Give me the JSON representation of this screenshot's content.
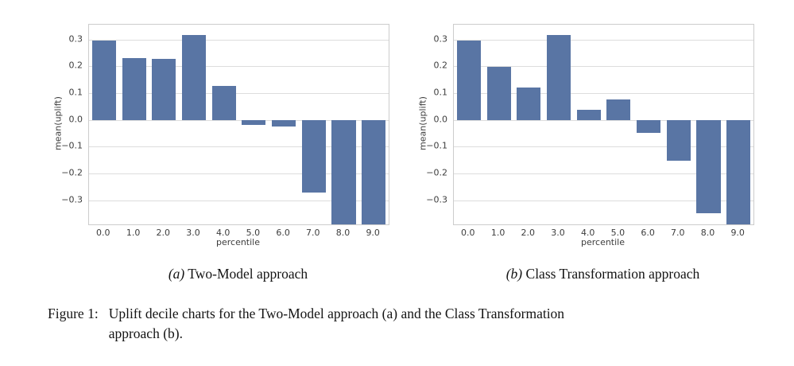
{
  "colors": {
    "background": "#ffffff",
    "bar": "#5975a4",
    "gridline": "#dddddd",
    "plot_border": "#cccccc",
    "tick_text": "#3d3d3d",
    "caption_text": "#141414"
  },
  "chart_data": [
    {
      "type": "bar",
      "subfigure": "a",
      "title": "",
      "xlabel": "percentile",
      "ylabel": "mean(uplift)",
      "categories": [
        "0.0",
        "1.0",
        "2.0",
        "3.0",
        "4.0",
        "5.0",
        "6.0",
        "7.0",
        "8.0",
        "9.0"
      ],
      "values": [
        0.295,
        0.23,
        0.228,
        0.317,
        0.127,
        -0.02,
        -0.025,
        -0.27,
        -0.39,
        -0.39
      ],
      "clipped_at_bottom": [
        "8.0",
        "9.0"
      ],
      "ylim": [
        -0.39,
        0.355
      ],
      "yticks": [
        0.3,
        0.2,
        0.1,
        0.0,
        -0.1,
        -0.2,
        -0.3
      ],
      "ytick_labels": [
        "0.3",
        "0.2",
        "0.1",
        "0.0",
        "−0.1",
        "−0.2",
        "−0.3"
      ],
      "grid": true,
      "legend": false,
      "bar_color": "#5975a4"
    },
    {
      "type": "bar",
      "subfigure": "b",
      "title": "",
      "xlabel": "percentile",
      "ylabel": "mean(uplift)",
      "categories": [
        "0.0",
        "1.0",
        "2.0",
        "3.0",
        "4.0",
        "5.0",
        "6.0",
        "7.0",
        "8.0",
        "9.0"
      ],
      "values": [
        0.295,
        0.198,
        0.12,
        0.318,
        0.038,
        0.077,
        -0.05,
        -0.152,
        -0.35,
        -0.39
      ],
      "clipped_at_bottom": [
        "9.0"
      ],
      "ylim": [
        -0.39,
        0.355
      ],
      "yticks": [
        0.3,
        0.2,
        0.1,
        0.0,
        -0.1,
        -0.2,
        -0.3
      ],
      "ytick_labels": [
        "0.3",
        "0.2",
        "0.1",
        "0.0",
        "−0.1",
        "−0.2",
        "−0.3"
      ],
      "grid": true,
      "legend": false,
      "bar_color": "#5975a4"
    }
  ],
  "figure": {
    "subcaptions": [
      {
        "prefix": "(a)",
        "text": " Two-Model approach"
      },
      {
        "prefix": "(b)",
        "text": " Class Transformation approach"
      }
    ],
    "caption_label": "Figure 1:",
    "caption_line1": "Uplift decile charts for the Two-Model approach (a) and the Class Transformation",
    "caption_line2": "approach (b)."
  }
}
